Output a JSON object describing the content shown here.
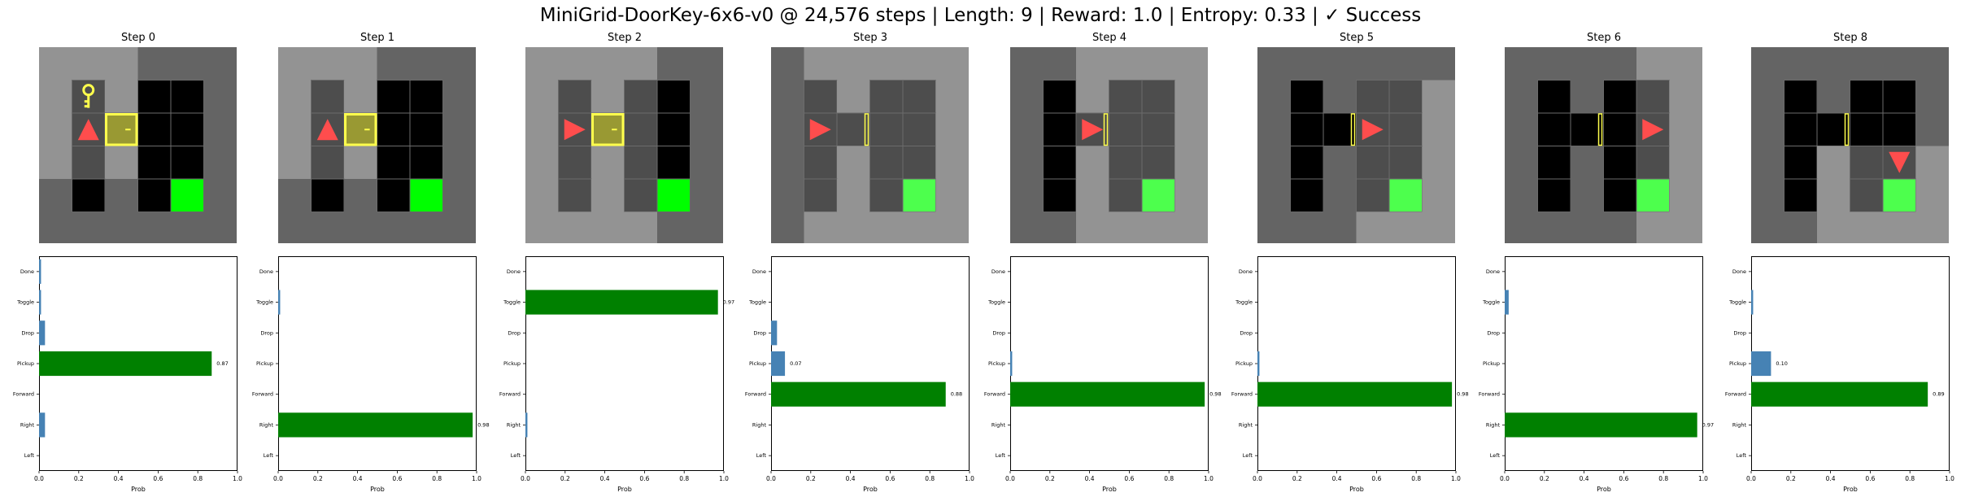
{
  "title": "MiniGrid-DoorKey-6x6-v0 @ 24,576 steps | Length: 9 | Reward: 1.0 | Entropy: 0.33 | ✓ Success",
  "colors": {
    "floor": "#000000",
    "wall": "#646464",
    "visible_wall": "#939393",
    "visible_floor": "#4d4d4d",
    "grid_line": "#6b6b6b",
    "agent": "#ff4d4d",
    "door": "#ffff4d",
    "door_fill_locked": "#999933",
    "key": "#ffff4d",
    "goal": "#00ff00",
    "goal_visible": "#4dff4d",
    "bar_max": "#008000",
    "bar_other": "#4682b4"
  },
  "steps": [
    {
      "label": "Step 0",
      "agent_dir": "up",
      "door_state": "locked",
      "key_visible": true
    },
    {
      "label": "Step 1",
      "agent_dir": "up",
      "door_state": "locked",
      "key_visible": false
    },
    {
      "label": "Step 2",
      "agent_dir": "right",
      "door_state": "locked",
      "key_visible": false
    },
    {
      "label": "Step 3",
      "agent_dir": "right",
      "door_state": "open",
      "key_visible": false
    },
    {
      "label": "Step 4",
      "agent_dir": "right",
      "door_state": "open",
      "key_visible": false
    },
    {
      "label": "Step 5",
      "agent_dir": "right",
      "door_state": "open",
      "key_visible": false
    },
    {
      "label": "Step 6",
      "agent_dir": "right",
      "door_state": "open",
      "key_visible": false
    },
    {
      "label": "Step 8",
      "agent_dir": "down",
      "door_state": "open",
      "key_visible": false
    }
  ],
  "chart_data": [
    {
      "type": "bar",
      "orientation": "horizontal",
      "title": "Step 0",
      "categories": [
        "Left",
        "Right",
        "Forward",
        "Pickup",
        "Drop",
        "Toggle",
        "Done"
      ],
      "values": [
        0.0,
        0.03,
        0.0,
        0.87,
        0.03,
        0.01,
        0.01
      ],
      "xlabel": "Prob",
      "xlim": [
        0,
        1
      ],
      "xticks": [
        "0.0",
        "0.2",
        "0.4",
        "0.6",
        "0.8",
        "1.0"
      ],
      "data_label": "0.87"
    },
    {
      "type": "bar",
      "orientation": "horizontal",
      "title": "Step 1",
      "categories": [
        "Left",
        "Right",
        "Forward",
        "Pickup",
        "Drop",
        "Toggle",
        "Done"
      ],
      "values": [
        0.0,
        0.98,
        0.0,
        0.0,
        0.0,
        0.01,
        0.0
      ],
      "xlabel": "Prob",
      "xlim": [
        0,
        1
      ],
      "xticks": [
        "0.0",
        "0.2",
        "0.4",
        "0.6",
        "0.8",
        "1.0"
      ],
      "data_label": "0.98"
    },
    {
      "type": "bar",
      "orientation": "horizontal",
      "title": "Step 2",
      "categories": [
        "Left",
        "Right",
        "Forward",
        "Pickup",
        "Drop",
        "Toggle",
        "Done"
      ],
      "values": [
        0.0,
        0.01,
        0.0,
        0.0,
        0.0,
        0.97,
        0.0
      ],
      "xlabel": "Prob",
      "xlim": [
        0,
        1
      ],
      "xticks": [
        "0.0",
        "0.2",
        "0.4",
        "0.6",
        "0.8",
        "1.0"
      ],
      "data_label": "0.97"
    },
    {
      "type": "bar",
      "orientation": "horizontal",
      "title": "Step 3",
      "categories": [
        "Left",
        "Right",
        "Forward",
        "Pickup",
        "Drop",
        "Toggle",
        "Done"
      ],
      "values": [
        0.0,
        0.0,
        0.88,
        0.07,
        0.03,
        0.0,
        0.0
      ],
      "xlabel": "Prob",
      "xlim": [
        0,
        1
      ],
      "xticks": [
        "0.0",
        "0.2",
        "0.4",
        "0.6",
        "0.8",
        "1.0"
      ],
      "data_label": "0.88",
      "data_label_2": "0.07"
    },
    {
      "type": "bar",
      "orientation": "horizontal",
      "title": "Step 4",
      "categories": [
        "Left",
        "Right",
        "Forward",
        "Pickup",
        "Drop",
        "Toggle",
        "Done"
      ],
      "values": [
        0.0,
        0.0,
        0.98,
        0.01,
        0.0,
        0.0,
        0.0
      ],
      "xlabel": "Prob",
      "xlim": [
        0,
        1
      ],
      "xticks": [
        "0.0",
        "0.2",
        "0.4",
        "0.6",
        "0.8",
        "1.0"
      ],
      "data_label": "0.98"
    },
    {
      "type": "bar",
      "orientation": "horizontal",
      "title": "Step 5",
      "categories": [
        "Left",
        "Right",
        "Forward",
        "Pickup",
        "Drop",
        "Toggle",
        "Done"
      ],
      "values": [
        0.0,
        0.0,
        0.98,
        0.01,
        0.0,
        0.0,
        0.0
      ],
      "xlabel": "Prob",
      "xlim": [
        0,
        1
      ],
      "xticks": [
        "0.0",
        "0.2",
        "0.4",
        "0.6",
        "0.8",
        "1.0"
      ],
      "data_label": "0.98"
    },
    {
      "type": "bar",
      "orientation": "horizontal",
      "title": "Step 6",
      "categories": [
        "Left",
        "Right",
        "Forward",
        "Pickup",
        "Drop",
        "Toggle",
        "Done"
      ],
      "values": [
        0.0,
        0.97,
        0.0,
        0.0,
        0.0,
        0.02,
        0.0
      ],
      "xlabel": "Prob",
      "xlim": [
        0,
        1
      ],
      "xticks": [
        "0.0",
        "0.2",
        "0.4",
        "0.6",
        "0.8",
        "1.0"
      ],
      "data_label": "0.97"
    },
    {
      "type": "bar",
      "orientation": "horizontal",
      "title": "Step 8",
      "categories": [
        "Left",
        "Right",
        "Forward",
        "Pickup",
        "Drop",
        "Toggle",
        "Done"
      ],
      "values": [
        0.0,
        0.0,
        0.89,
        0.1,
        0.0,
        0.01,
        0.0
      ],
      "xlabel": "Prob",
      "xlim": [
        0,
        1
      ],
      "xticks": [
        "0.0",
        "0.2",
        "0.4",
        "0.6",
        "0.8",
        "1.0"
      ],
      "data_label": "0.89",
      "data_label_2": "0.10"
    }
  ]
}
